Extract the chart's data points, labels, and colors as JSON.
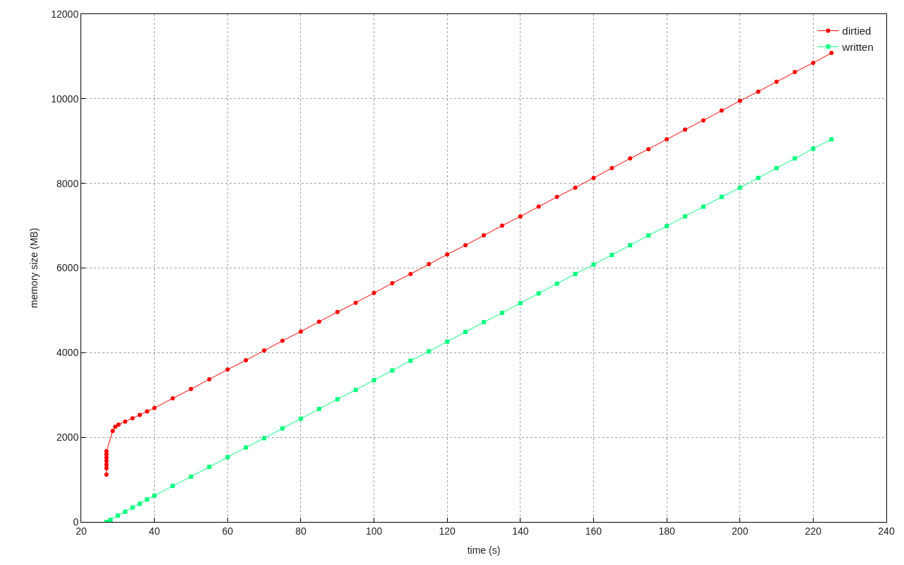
{
  "chart_data": {
    "type": "line",
    "xlabel": "time (s)",
    "ylabel": "memory size (MB)",
    "xlim": [
      20,
      240
    ],
    "xticks": [
      20,
      40,
      60,
      80,
      100,
      120,
      140,
      160,
      180,
      200,
      220,
      240
    ],
    "ylim": [
      0,
      12000
    ],
    "yticks": [
      0,
      2000,
      4000,
      6000,
      8000,
      10000,
      12000
    ],
    "grid": true,
    "legend": "top right",
    "line_style": "solid",
    "series": [
      {
        "name": "dirtied",
        "color": "#ff0000",
        "marker": "circle",
        "x": [
          26.9,
          26.9,
          26.9,
          26.9,
          26.9,
          26.9,
          26.9,
          28.6,
          29.3,
          30.2,
          32,
          34,
          36,
          38,
          40,
          45,
          50,
          55,
          60,
          65,
          70,
          75,
          80,
          85,
          90,
          95,
          100,
          105,
          110,
          115,
          120,
          125,
          130,
          135,
          140,
          145,
          150,
          155,
          160,
          165,
          170,
          175,
          180,
          185,
          190,
          195,
          200,
          205,
          210,
          215,
          220,
          225
        ],
        "values": [
          1120,
          1270,
          1350,
          1440,
          1520,
          1600,
          1670,
          2150,
          2250,
          2300,
          2370,
          2450,
          2530,
          2610,
          2690,
          2920,
          3140,
          3370,
          3600,
          3820,
          4050,
          4280,
          4500,
          4730,
          4960,
          5180,
          5410,
          5640,
          5860,
          6090,
          6320,
          6540,
          6770,
          7000,
          7220,
          7450,
          7680,
          7900,
          8130,
          8360,
          8590,
          8810,
          9040,
          9270,
          9490,
          9720,
          9950,
          10170,
          10400,
          10630,
          10850,
          11080
        ]
      },
      {
        "name": "written",
        "color": "#00ff7f",
        "marker": "square",
        "x": [
          26.9,
          28,
          30,
          32,
          34,
          36,
          38,
          40,
          45,
          50,
          55,
          60,
          65,
          70,
          75,
          80,
          85,
          90,
          95,
          100,
          105,
          110,
          115,
          120,
          125,
          130,
          135,
          140,
          145,
          150,
          155,
          160,
          165,
          170,
          175,
          180,
          185,
          190,
          195,
          200,
          205,
          210,
          215,
          220,
          225
        ],
        "values": [
          0,
          50,
          150,
          240,
          340,
          430,
          530,
          620,
          850,
          1070,
          1300,
          1530,
          1760,
          1980,
          2210,
          2440,
          2670,
          2900,
          3120,
          3350,
          3580,
          3810,
          4030,
          4260,
          4490,
          4720,
          4940,
          5170,
          5400,
          5630,
          5860,
          6080,
          6310,
          6540,
          6770,
          6990,
          7220,
          7450,
          7680,
          7900,
          8130,
          8360,
          8590,
          8820,
          9040
        ]
      }
    ]
  }
}
